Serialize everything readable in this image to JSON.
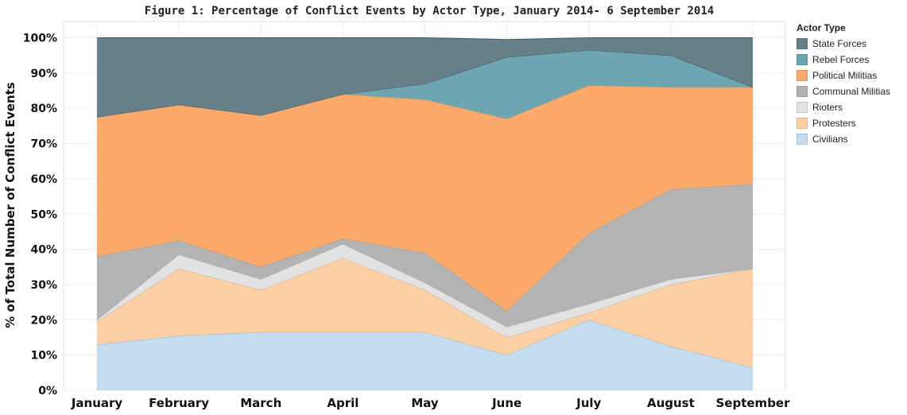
{
  "chart_data": {
    "type": "area",
    "stacked": true,
    "title": "Figure 1: Percentage of Conflict Events by Actor Type, January 2014- 6 September 2014",
    "xlabel": "",
    "ylabel": "% of Total Number of Conflict Events",
    "ylim": [
      0,
      100
    ],
    "grid": true,
    "legend_title": "Actor Type",
    "legend_position": "right",
    "categories": [
      "January",
      "February",
      "March",
      "April",
      "May",
      "June",
      "July",
      "August",
      "September"
    ],
    "y_ticks": [
      "0%",
      "10%",
      "20%",
      "30%",
      "40%",
      "50%",
      "60%",
      "70%",
      "80%",
      "90%",
      "100%"
    ],
    "y_tick_values": [
      0,
      10,
      20,
      30,
      40,
      50,
      60,
      70,
      80,
      90,
      100
    ],
    "series": [
      {
        "name": "Civilians",
        "color": "#c5dcf0",
        "values": [
          13,
          15.5,
          16.5,
          16.5,
          16.5,
          10,
          20,
          12.5,
          6.5
        ]
      },
      {
        "name": "Protesters",
        "color": "#fdcfa4",
        "values": [
          6.5,
          19,
          12,
          21,
          12,
          5,
          2,
          17.5,
          28
        ]
      },
      {
        "name": "Rioters",
        "color": "#e2e2e2",
        "values": [
          0.5,
          4,
          3,
          4,
          2,
          3,
          2.5,
          1.5,
          0
        ]
      },
      {
        "name": "Communal Militias",
        "color": "#b3b3b3",
        "values": [
          18,
          4,
          3.5,
          1.5,
          8.5,
          4.5,
          20,
          25.5,
          24
        ]
      },
      {
        "name": "Political Militias",
        "color": "#fcaa6b",
        "values": [
          39.5,
          38.5,
          43,
          41,
          43.5,
          54.5,
          42,
          29,
          27.5
        ]
      },
      {
        "name": "Rebel Forces",
        "color": "#6ea5b1",
        "values": [
          0,
          0,
          0,
          0,
          4.5,
          17.5,
          10,
          9,
          0
        ]
      },
      {
        "name": "State Forces",
        "color": "#677f89",
        "values": [
          22.5,
          19,
          22,
          16,
          13,
          5,
          3.5,
          5,
          14
        ]
      }
    ]
  }
}
